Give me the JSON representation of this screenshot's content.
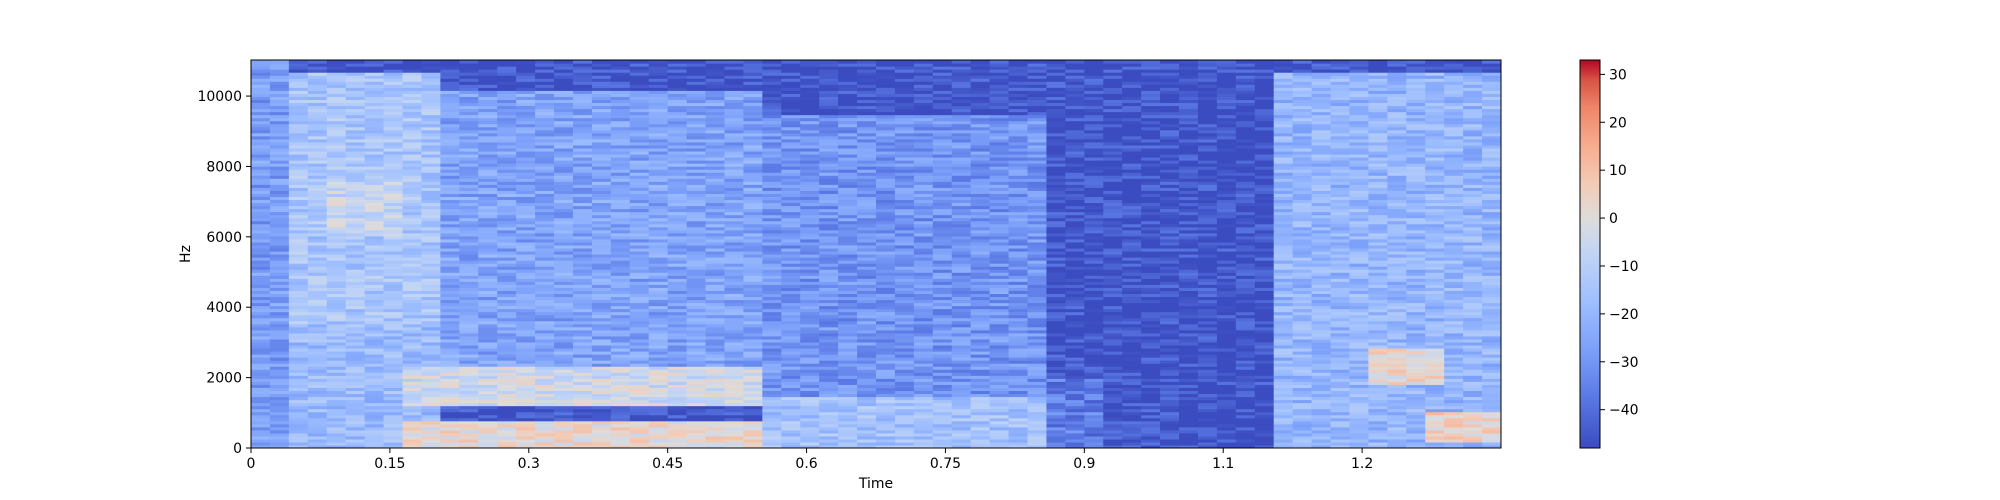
{
  "chart_data": {
    "type": "heatmap",
    "title": "",
    "xlabel": "Time",
    "ylabel": "Hz",
    "xlim": [
      0,
      1.35
    ],
    "ylim": [
      0,
      11025
    ],
    "x_ticks": [
      {
        "value": 0,
        "label": "0"
      },
      {
        "value": 0.15,
        "label": "0.15"
      },
      {
        "value": 0.3,
        "label": "0.3"
      },
      {
        "value": 0.45,
        "label": "0.45"
      },
      {
        "value": 0.6,
        "label": "0.6"
      },
      {
        "value": 0.75,
        "label": "0.75"
      },
      {
        "value": 0.9,
        "label": "0.9"
      },
      {
        "value": 1.05,
        "label": "1.1"
      },
      {
        "value": 1.2,
        "label": "1.2"
      }
    ],
    "y_ticks": [
      {
        "value": 0,
        "label": "0"
      },
      {
        "value": 2000,
        "label": "2000"
      },
      {
        "value": 4000,
        "label": "4000"
      },
      {
        "value": 6000,
        "label": "6000"
      },
      {
        "value": 8000,
        "label": "8000"
      },
      {
        "value": 10000,
        "label": "10000"
      }
    ],
    "colorbar": {
      "colormap": "coolwarm",
      "range": [
        -48,
        33
      ],
      "ticks": [
        {
          "value": -40,
          "label": "−40"
        },
        {
          "value": -30,
          "label": "−30"
        },
        {
          "value": -20,
          "label": "−20"
        },
        {
          "value": -10,
          "label": "−10"
        },
        {
          "value": 0,
          "label": "0"
        },
        {
          "value": 10,
          "label": "10"
        },
        {
          "value": 20,
          "label": "20"
        },
        {
          "value": 30,
          "label": "30"
        }
      ]
    },
    "energy_regions": [
      {
        "t": [
          0.0,
          0.05
        ],
        "f": [
          0,
          11025
        ],
        "level": -28
      },
      {
        "t": [
          0.05,
          0.21
        ],
        "f": [
          3500,
          10700
        ],
        "level": -14
      },
      {
        "t": [
          0.05,
          0.21
        ],
        "f": [
          0,
          3500
        ],
        "level": -18
      },
      {
        "t": [
          0.09,
          0.17
        ],
        "f": [
          6000,
          7600
        ],
        "level": -6
      },
      {
        "t": [
          0.17,
          0.56
        ],
        "f": [
          0,
          800
        ],
        "level": 2
      },
      {
        "t": [
          0.17,
          0.56
        ],
        "f": [
          1200,
          2300
        ],
        "level": -4
      },
      {
        "t": [
          0.17,
          0.56
        ],
        "f": [
          2300,
          10200
        ],
        "level": -26
      },
      {
        "t": [
          0.56,
          0.85
        ],
        "f": [
          0,
          1500
        ],
        "level": -16
      },
      {
        "t": [
          0.56,
          0.85
        ],
        "f": [
          1500,
          9500
        ],
        "level": -30
      },
      {
        "t": [
          0.85,
          0.93
        ],
        "f": [
          0,
          2000
        ],
        "level": -36
      },
      {
        "t": [
          0.93,
          1.1
        ],
        "f": [
          0,
          11025
        ],
        "level": -48
      },
      {
        "t": [
          1.1,
          1.35
        ],
        "f": [
          0,
          10700
        ],
        "level": -20
      },
      {
        "t": [
          1.2,
          1.28
        ],
        "f": [
          1800,
          2800
        ],
        "level": 2
      },
      {
        "t": [
          1.26,
          1.34
        ],
        "f": [
          200,
          1000
        ],
        "level": 4
      }
    ]
  }
}
